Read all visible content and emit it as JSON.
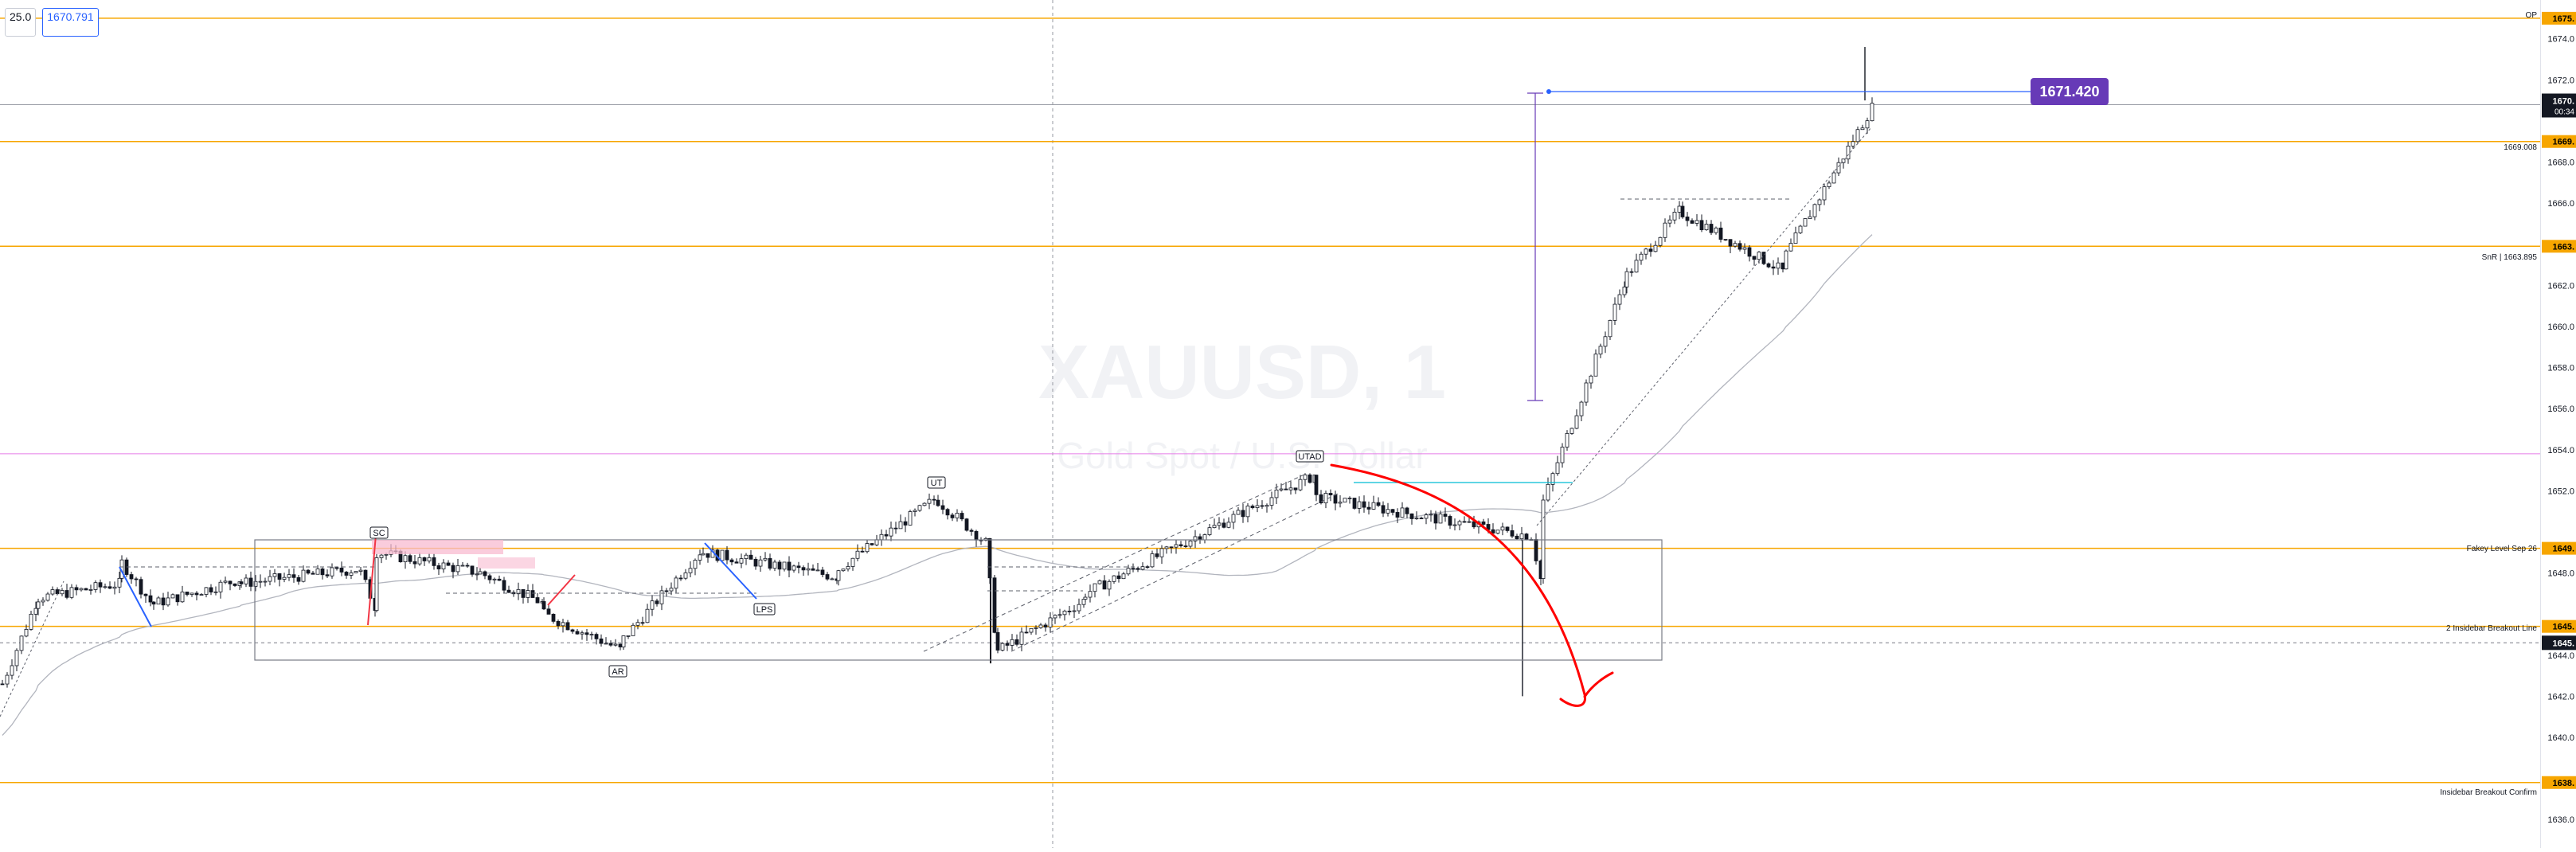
{
  "header": {
    "interval_chip": "25.0",
    "price_chip": "1670.791"
  },
  "watermark": {
    "symbol": "XAUUSD, 1",
    "description": "Gold Spot / U.S. Dollar"
  },
  "colors": {
    "level": "#f7a600",
    "up": "#131722",
    "down": "#131722",
    "ma": "#b2b5be",
    "pink_level": "#e57ce8",
    "callout": "#673ab7",
    "red_arrow": "#ff0000",
    "blue_line": "#2962ff",
    "zone_pink": "#f8bbd0"
  },
  "annotations": {
    "sc": "SC",
    "ar": "AR",
    "ut": "UT",
    "utad": "UTAD",
    "lps": "LPS",
    "measure_price": "1671.420"
  },
  "level_labels": {
    "top_right": "OP",
    "l1669": "1669.008",
    "l1663": "SnR | 1663.895",
    "l1649": "Fakey Level Sep 26",
    "l1645": "2 Insidebar Breakout Line",
    "l1638": "Insidebar Breakout Confirm"
  },
  "price_scale": {
    "ticks": [
      "1674.0",
      "1672.0",
      "1668.0",
      "1666.0",
      "1662.0",
      "1660.0",
      "1658.0",
      "1656.0",
      "1654.0",
      "1652.0",
      "1648.0",
      "1644.0",
      "1642.0",
      "1640.0",
      "1636.0"
    ],
    "badges": [
      {
        "text": "1675.",
        "color": "#f7a600"
      },
      {
        "text": "1669.",
        "color": "#f7a600"
      },
      {
        "text": "1663.",
        "color": "#f7a600"
      },
      {
        "text": "1649.",
        "color": "#f7a600"
      },
      {
        "text": "1645.",
        "color": "#f7a600"
      },
      {
        "text": "1638.",
        "color": "#f7a600"
      }
    ],
    "current_price": "1670.",
    "countdown": "00:34",
    "crosshair_price": "1645."
  },
  "chart_data": {
    "type": "candlestick",
    "symbol": "XAUUSD, 1",
    "ylim": [
      1635.0,
      1675.5
    ],
    "levels": [
      1675.0,
      1669.0,
      1663.9,
      1649.2,
      1645.4,
      1637.8
    ],
    "current_price": 1670.791,
    "measure_target": 1671.42,
    "range_box": {
      "top": 1649.3,
      "bottom": 1643.6
    },
    "segments": [
      {
        "x_from": 0,
        "x_to": 45,
        "from": 1642.6,
        "to": 1646.8
      },
      {
        "x_from": 45,
        "x_to": 150,
        "from": 1646.8,
        "to": 1647.5
      },
      {
        "x_from": 150,
        "x_to": 190,
        "from": 1648.5,
        "to": 1646.4
      },
      {
        "x_from": 190,
        "x_to": 300,
        "from": 1646.5,
        "to": 1647.7
      },
      {
        "x_from": 300,
        "x_to": 450,
        "from": 1647.5,
        "to": 1648.2
      },
      {
        "x_from": 450,
        "x_to": 470,
        "from": 1648.0,
        "to": 1646.2
      },
      {
        "x_from": 470,
        "x_to": 600,
        "from": 1649.0,
        "to": 1648.0
      },
      {
        "x_from": 600,
        "x_to": 680,
        "from": 1648.0,
        "to": 1646.5
      },
      {
        "x_from": 680,
        "x_to": 780,
        "from": 1646.0,
        "to": 1644.2
      },
      {
        "x_from": 780,
        "x_to": 880,
        "from": 1644.8,
        "to": 1649.2
      },
      {
        "x_from": 880,
        "x_to": 1050,
        "from": 1649.0,
        "to": 1647.8
      },
      {
        "x_from": 1050,
        "x_to": 1175,
        "from": 1648.2,
        "to": 1651.7
      },
      {
        "x_from": 1175,
        "x_to": 1240,
        "from": 1651.5,
        "to": 1649.3
      },
      {
        "x_from": 1240,
        "x_to": 1250,
        "from": 1647.5,
        "to": 1643.9
      },
      {
        "x_from": 1250,
        "x_to": 1360,
        "from": 1644.2,
        "to": 1646.7
      },
      {
        "x_from": 1360,
        "x_to": 1650,
        "from": 1647.0,
        "to": 1652.8
      },
      {
        "x_from": 1650,
        "x_to": 1920,
        "from": 1651.7,
        "to": 1649.8
      },
      {
        "x_from": 1920,
        "x_to": 1935,
        "from": 1649.8,
        "to": 1647.2
      },
      {
        "x_from": 1935,
        "x_to": 2040,
        "from": 1651.5,
        "to": 1662.5
      },
      {
        "x_from": 2040,
        "x_to": 2110,
        "from": 1662.5,
        "to": 1665.8
      },
      {
        "x_from": 2110,
        "x_to": 2240,
        "from": 1665.5,
        "to": 1662.6
      },
      {
        "x_from": 2240,
        "x_to": 2350,
        "from": 1663.5,
        "to": 1670.8
      }
    ]
  }
}
